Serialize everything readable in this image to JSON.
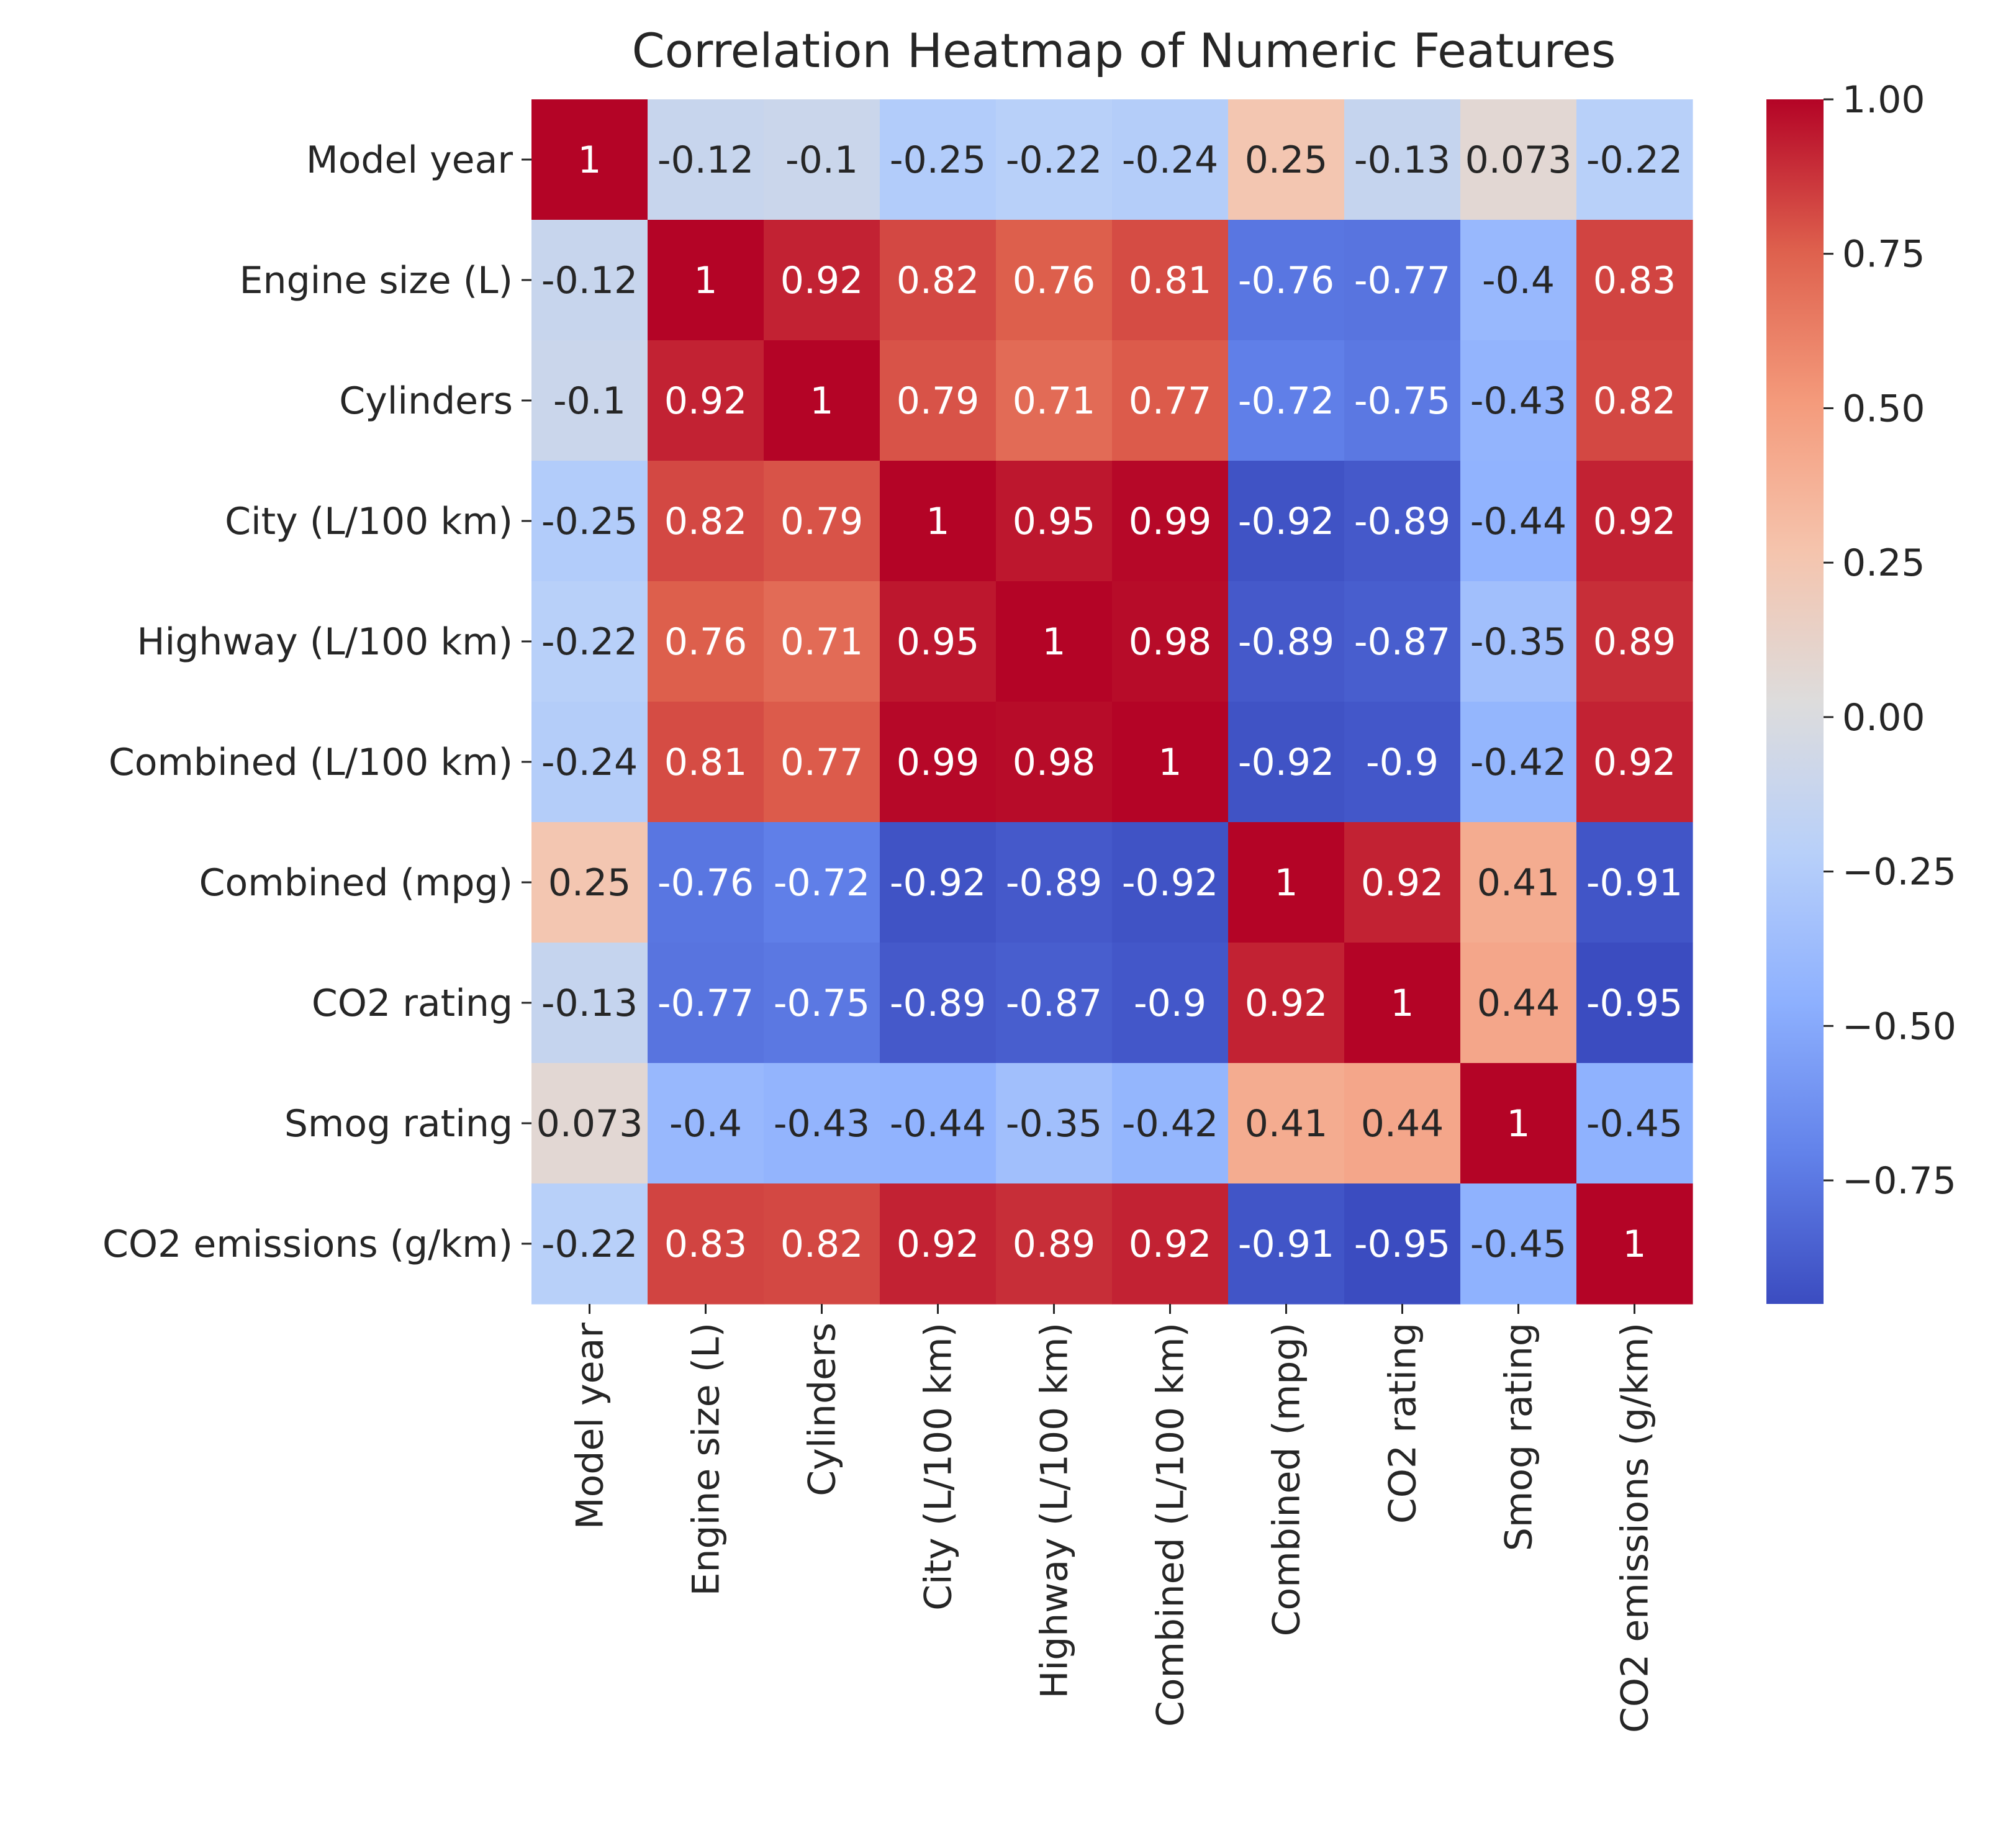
{
  "chart_data": {
    "type": "heatmap",
    "title": "Correlation Heatmap of Numeric Features",
    "xlabel": "",
    "ylabel": "",
    "labels": [
      "Model year",
      "Engine size (L)",
      "Cylinders",
      "City (L/100 km)",
      "Highway (L/100 km)",
      "Combined (L/100 km)",
      "Combined (mpg)",
      "CO2 rating",
      "Smog rating",
      "CO2 emissions (g/km)"
    ],
    "matrix": [
      [
        1,
        -0.12,
        -0.1,
        -0.25,
        -0.22,
        -0.24,
        0.25,
        -0.13,
        0.073,
        -0.22
      ],
      [
        -0.12,
        1,
        0.92,
        0.82,
        0.76,
        0.81,
        -0.76,
        -0.77,
        -0.4,
        0.83
      ],
      [
        -0.1,
        0.92,
        1,
        0.79,
        0.71,
        0.77,
        -0.72,
        -0.75,
        -0.43,
        0.82
      ],
      [
        -0.25,
        0.82,
        0.79,
        1,
        0.95,
        0.99,
        -0.92,
        -0.89,
        -0.44,
        0.92
      ],
      [
        -0.22,
        0.76,
        0.71,
        0.95,
        1,
        0.98,
        -0.89,
        -0.87,
        -0.35,
        0.89
      ],
      [
        -0.24,
        0.81,
        0.77,
        0.99,
        0.98,
        1,
        -0.92,
        -0.9,
        -0.42,
        0.92
      ],
      [
        0.25,
        -0.76,
        -0.72,
        -0.92,
        -0.89,
        -0.92,
        1,
        0.92,
        0.41,
        -0.91
      ],
      [
        -0.13,
        -0.77,
        -0.75,
        -0.89,
        -0.87,
        -0.9,
        0.92,
        1,
        0.44,
        -0.95
      ],
      [
        0.073,
        -0.4,
        -0.43,
        -0.44,
        -0.35,
        -0.42,
        0.41,
        0.44,
        1,
        -0.45
      ],
      [
        -0.22,
        0.83,
        0.82,
        0.92,
        0.89,
        0.92,
        -0.91,
        -0.95,
        -0.45,
        1
      ]
    ],
    "cell_labels": [
      [
        "1",
        "-0.12",
        "-0.1",
        "-0.25",
        "-0.22",
        "-0.24",
        "0.25",
        "-0.13",
        "0.073",
        "-0.22"
      ],
      [
        "-0.12",
        "1",
        "0.92",
        "0.82",
        "0.76",
        "0.81",
        "-0.76",
        "-0.77",
        "-0.4",
        "0.83"
      ],
      [
        "-0.1",
        "0.92",
        "1",
        "0.79",
        "0.71",
        "0.77",
        "-0.72",
        "-0.75",
        "-0.43",
        "0.82"
      ],
      [
        "-0.25",
        "0.82",
        "0.79",
        "1",
        "0.95",
        "0.99",
        "-0.92",
        "-0.89",
        "-0.44",
        "0.92"
      ],
      [
        "-0.22",
        "0.76",
        "0.71",
        "0.95",
        "1",
        "0.98",
        "-0.89",
        "-0.87",
        "-0.35",
        "0.89"
      ],
      [
        "-0.24",
        "0.81",
        "0.77",
        "0.99",
        "0.98",
        "1",
        "-0.92",
        "-0.9",
        "-0.42",
        "0.92"
      ],
      [
        "0.25",
        "-0.76",
        "-0.72",
        "-0.92",
        "-0.89",
        "-0.92",
        "1",
        "0.92",
        "0.41",
        "-0.91"
      ],
      [
        "-0.13",
        "-0.77",
        "-0.75",
        "-0.89",
        "-0.87",
        "-0.9",
        "0.92",
        "1",
        "0.44",
        "-0.95"
      ],
      [
        "0.073",
        "-0.4",
        "-0.43",
        "-0.44",
        "-0.35",
        "-0.42",
        "0.41",
        "0.44",
        "1",
        "-0.45"
      ],
      [
        "-0.22",
        "0.83",
        "0.82",
        "0.92",
        "0.89",
        "0.92",
        "-0.91",
        "-0.95",
        "-0.45",
        "1"
      ]
    ],
    "colormap": "coolwarm",
    "colorbar": {
      "vmin": -0.95,
      "vmax": 1.0,
      "ticks": [
        1.0,
        0.75,
        0.5,
        0.25,
        0.0,
        -0.25,
        -0.5,
        -0.75
      ],
      "tick_labels": [
        "1.00",
        "0.75",
        "0.50",
        "0.25",
        "0.00",
        "−0.25",
        "−0.50",
        "−0.75"
      ]
    },
    "colors": {
      "low": "#3b4cc0",
      "mid": "#dddcdc",
      "high": "#b40426",
      "text_light": "#ffffff",
      "text_dark": "#262626"
    }
  }
}
